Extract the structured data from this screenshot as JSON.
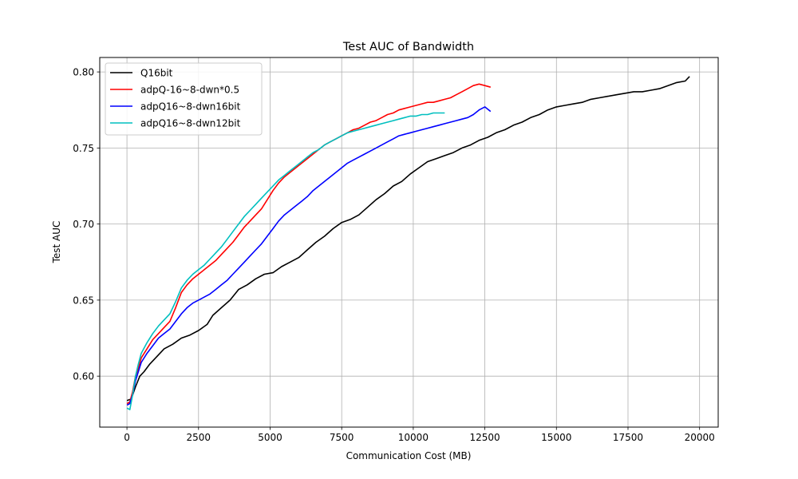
{
  "chart_data": {
    "type": "line",
    "title": "Test AUC of Bandwidth",
    "xlabel": "Communication Cost (MB)",
    "ylabel": "Test AUC",
    "xlim": [
      -950,
      20650
    ],
    "ylim": [
      0.5665,
      0.8095
    ],
    "xticks": [
      0,
      2500,
      5000,
      7500,
      10000,
      12500,
      15000,
      17500,
      20000
    ],
    "yticks": [
      0.6,
      0.65,
      0.7,
      0.75,
      0.8
    ],
    "xtick_labels": [
      "0",
      "2500",
      "5000",
      "7500",
      "10000",
      "12500",
      "15000",
      "17500",
      "20000"
    ],
    "ytick_labels": [
      "0.60",
      "0.65",
      "0.70",
      "0.75",
      "0.80"
    ],
    "grid": true,
    "legend_position": "upper left",
    "series": [
      {
        "name": "Q16bit",
        "color": "#000000",
        "x": [
          0,
          150,
          300,
          450,
          600,
          800,
          1000,
          1300,
          1600,
          1900,
          2200,
          2500,
          2800,
          3000,
          3300,
          3600,
          3900,
          4200,
          4500,
          4800,
          5100,
          5400,
          5700,
          6000,
          6300,
          6600,
          6900,
          7200,
          7500,
          7800,
          8100,
          8400,
          8700,
          9000,
          9300,
          9600,
          9900,
          10200,
          10500,
          10800,
          11100,
          11400,
          11700,
          12000,
          12300,
          12600,
          12900,
          13200,
          13500,
          13800,
          14100,
          14400,
          14700,
          15000,
          15300,
          15600,
          15900,
          16200,
          16500,
          16800,
          17100,
          17400,
          17700,
          18000,
          18300,
          18600,
          18900,
          19200,
          19500,
          19650
        ],
        "y": [
          0.584,
          0.585,
          0.593,
          0.6,
          0.603,
          0.608,
          0.612,
          0.618,
          0.621,
          0.625,
          0.627,
          0.63,
          0.634,
          0.64,
          0.645,
          0.65,
          0.657,
          0.66,
          0.664,
          0.667,
          0.668,
          0.672,
          0.675,
          0.678,
          0.683,
          0.688,
          0.692,
          0.697,
          0.701,
          0.703,
          0.706,
          0.711,
          0.716,
          0.72,
          0.725,
          0.728,
          0.733,
          0.737,
          0.741,
          0.743,
          0.745,
          0.747,
          0.75,
          0.752,
          0.755,
          0.757,
          0.76,
          0.762,
          0.765,
          0.767,
          0.77,
          0.772,
          0.775,
          0.777,
          0.778,
          0.779,
          0.78,
          0.782,
          0.783,
          0.784,
          0.785,
          0.786,
          0.787,
          0.787,
          0.788,
          0.789,
          0.791,
          0.793,
          0.794,
          0.797
        ]
      },
      {
        "name": "adpQ-16~8-dwn*0.5",
        "color": "#ff0000",
        "x": [
          0,
          100,
          200,
          300,
          400,
          500,
          700,
          900,
          1100,
          1300,
          1500,
          1700,
          1900,
          2100,
          2300,
          2500,
          2700,
          2900,
          3100,
          3300,
          3500,
          3700,
          3900,
          4100,
          4300,
          4500,
          4700,
          4900,
          5100,
          5300,
          5500,
          5700,
          5900,
          6100,
          6300,
          6500,
          6700,
          6900,
          7100,
          7300,
          7500,
          7700,
          7900,
          8100,
          8300,
          8500,
          8700,
          8900,
          9100,
          9300,
          9500,
          9700,
          9900,
          10100,
          10300,
          10500,
          10700,
          10900,
          11100,
          11300,
          11500,
          11700,
          11900,
          12100,
          12300,
          12500,
          12700
        ],
        "y": [
          0.582,
          0.583,
          0.59,
          0.6,
          0.605,
          0.612,
          0.618,
          0.624,
          0.628,
          0.632,
          0.636,
          0.645,
          0.655,
          0.66,
          0.664,
          0.667,
          0.67,
          0.673,
          0.676,
          0.68,
          0.684,
          0.688,
          0.693,
          0.698,
          0.702,
          0.706,
          0.71,
          0.716,
          0.722,
          0.727,
          0.731,
          0.734,
          0.737,
          0.74,
          0.743,
          0.746,
          0.749,
          0.752,
          0.754,
          0.756,
          0.758,
          0.76,
          0.762,
          0.763,
          0.765,
          0.767,
          0.768,
          0.77,
          0.772,
          0.773,
          0.775,
          0.776,
          0.777,
          0.778,
          0.779,
          0.78,
          0.78,
          0.781,
          0.782,
          0.783,
          0.785,
          0.787,
          0.789,
          0.791,
          0.792,
          0.791,
          0.79
        ]
      },
      {
        "name": "adpQ16~8-dwn16bit",
        "color": "#0000ff",
        "x": [
          0,
          100,
          200,
          300,
          400,
          500,
          700,
          900,
          1100,
          1300,
          1500,
          1700,
          1900,
          2100,
          2300,
          2500,
          2700,
          2900,
          3100,
          3300,
          3500,
          3700,
          3900,
          4100,
          4300,
          4500,
          4700,
          4900,
          5100,
          5300,
          5500,
          5700,
          5900,
          6100,
          6300,
          6500,
          6700,
          6900,
          7100,
          7300,
          7500,
          7700,
          7900,
          8100,
          8300,
          8500,
          8700,
          8900,
          9100,
          9300,
          9500,
          9700,
          9900,
          10100,
          10300,
          10500,
          10700,
          10900,
          11100,
          11300,
          11500,
          11700,
          11900,
          12100,
          12300,
          12500,
          12700
        ],
        "y": [
          0.581,
          0.582,
          0.588,
          0.597,
          0.603,
          0.609,
          0.615,
          0.62,
          0.625,
          0.628,
          0.631,
          0.636,
          0.641,
          0.645,
          0.648,
          0.65,
          0.652,
          0.654,
          0.657,
          0.66,
          0.663,
          0.667,
          0.671,
          0.675,
          0.679,
          0.683,
          0.687,
          0.692,
          0.697,
          0.702,
          0.706,
          0.709,
          0.712,
          0.715,
          0.718,
          0.722,
          0.725,
          0.728,
          0.731,
          0.734,
          0.737,
          0.74,
          0.742,
          0.744,
          0.746,
          0.748,
          0.75,
          0.752,
          0.754,
          0.756,
          0.758,
          0.759,
          0.76,
          0.761,
          0.762,
          0.763,
          0.764,
          0.765,
          0.766,
          0.767,
          0.768,
          0.769,
          0.77,
          0.772,
          0.775,
          0.777,
          0.774
        ]
      },
      {
        "name": "adpQ16~8-dwn12bit",
        "color": "#00bfbf",
        "x": [
          0,
          100,
          200,
          300,
          400,
          500,
          700,
          900,
          1100,
          1300,
          1500,
          1700,
          1900,
          2100,
          2300,
          2500,
          2700,
          2900,
          3100,
          3300,
          3500,
          3700,
          3900,
          4100,
          4300,
          4500,
          4700,
          4900,
          5100,
          5300,
          5500,
          5700,
          5900,
          6100,
          6300,
          6500,
          6700,
          6900,
          7100,
          7300,
          7500,
          7700,
          7900,
          8100,
          8300,
          8500,
          8700,
          8900,
          9100,
          9300,
          9500,
          9700,
          9900,
          10100,
          10300,
          10500,
          10700,
          10900,
          11100
        ],
        "y": [
          0.579,
          0.578,
          0.588,
          0.6,
          0.608,
          0.615,
          0.622,
          0.628,
          0.633,
          0.637,
          0.641,
          0.649,
          0.658,
          0.663,
          0.667,
          0.67,
          0.673,
          0.677,
          0.681,
          0.685,
          0.69,
          0.695,
          0.7,
          0.705,
          0.709,
          0.713,
          0.717,
          0.721,
          0.725,
          0.729,
          0.732,
          0.735,
          0.738,
          0.741,
          0.744,
          0.747,
          0.749,
          0.752,
          0.754,
          0.756,
          0.758,
          0.76,
          0.761,
          0.762,
          0.763,
          0.764,
          0.765,
          0.766,
          0.767,
          0.768,
          0.769,
          0.77,
          0.771,
          0.771,
          0.772,
          0.772,
          0.773,
          0.773,
          0.773
        ]
      }
    ]
  }
}
